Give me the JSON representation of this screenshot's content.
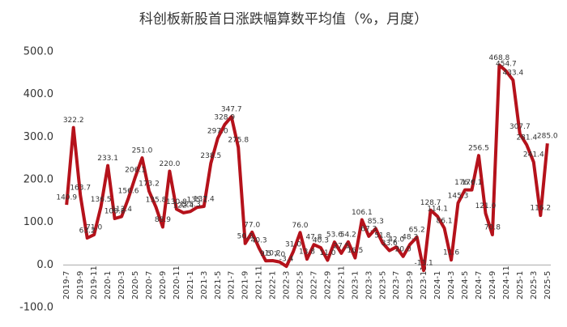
{
  "chart_data": {
    "type": "line",
    "title": "科创板新股首日涨跌幅算数平均值（%，月度）",
    "categories": [
      "2019-7",
      null,
      "2019-9",
      null,
      "2019-11",
      null,
      "2020-1",
      null,
      "2020-3",
      null,
      "2020-5",
      null,
      "2020-7",
      null,
      "2020-9",
      null,
      "2020-11",
      null,
      "2021-1",
      null,
      "2021-3",
      null,
      "2021-5",
      null,
      "2021-7",
      null,
      "2021-9",
      null,
      "2021-11",
      null,
      "2022-1",
      null,
      "2022-3",
      null,
      "2022-5",
      null,
      "2022-7",
      null,
      "2022-9",
      null,
      "2022-11",
      null,
      "2023-1",
      null,
      "2023-3",
      null,
      "2023-5",
      null,
      "2023-7",
      null,
      "2023-9",
      null,
      "2023-11",
      null,
      "2024-1",
      null,
      "2024-3",
      null,
      "2024-5",
      null,
      "2024-7",
      null,
      "2024-9",
      null,
      "2024-11",
      null,
      "2025-1",
      null,
      "2025-3",
      null,
      "2025-5"
    ],
    "series": [
      {
        "name": "首日涨跌幅",
        "color": "#b5121b",
        "values": [
          140.9,
          322.2,
          163.7,
          63.2,
          71.0,
          136.5,
          233.1,
          108.8,
          113.4,
          156.6,
          206.1,
          251.0,
          173.2,
          135.8,
          88.9,
          220.0,
          130.8,
          122.4,
          125.3,
          135.1,
          137.4,
          238.5,
          297.0,
          328.9,
          347.7,
          275.8,
          50.3,
          77.0,
          40.3,
          9.5,
          10.2,
          7.0,
          -3.4,
          31.0,
          76.0,
          13.8,
          47.8,
          40.3,
          11.0,
          53.6,
          27.5,
          54.2,
          16.5,
          106.1,
          67.3,
          85.3,
          51.8,
          33.6,
          42.0,
          20.0,
          48.3,
          65.2,
          -13.1,
          128.7,
          114.1,
          86.1,
          11.6,
          145.3,
          176.0,
          176.1,
          256.5,
          121.0,
          70.8,
          468.8,
          454.7,
          433.4,
          307.7,
          281.4,
          241.4,
          116.2,
          285.0
        ],
        "value_labels": [
          "140.9",
          "322.2",
          "163.7",
          "63.2",
          "71.0",
          "136.5",
          "233.1",
          "108.8",
          "113.4",
          "156.6",
          "206.1",
          "251.0",
          "173.2",
          "135.8",
          "88.9",
          "220.0",
          "130.8",
          "122.4",
          "125.3",
          "135.1",
          "137.4",
          "238.5",
          "297.0",
          "328.9",
          "347.7",
          "275.8",
          "50.3",
          "77.0",
          "40.3",
          "9.5",
          "10.2",
          "7.0",
          "-3.4",
          "31.0",
          "76.0",
          "13.8",
          "47.8",
          "40.3",
          "11.0",
          "53.6",
          "27.5",
          "54.2",
          "16.5",
          "106.1",
          "67.3",
          "85.3",
          "51.8",
          "33.6",
          "42.0",
          "20.0",
          "48.3",
          "65.2",
          "-13.1",
          "128.7",
          "114.1",
          "86.1",
          "11.6",
          "145.3",
          "176.0",
          "176.1",
          "256.5",
          "121.0",
          "70.8",
          "468.8",
          "454.7",
          "433.4",
          "307.7",
          "281.4",
          "241.4",
          "116.2",
          "285.0"
        ]
      }
    ],
    "ylim": [
      -100,
      500
    ],
    "yticks": [
      {
        "value": -100,
        "label": "-100.0"
      },
      {
        "value": 0,
        "label": "0.0"
      },
      {
        "value": 100,
        "label": "100.0"
      },
      {
        "value": 200,
        "label": "200.0"
      },
      {
        "value": 300,
        "label": "300.0"
      },
      {
        "value": 400,
        "label": "400.0"
      },
      {
        "value": 500,
        "label": "500.0"
      }
    ]
  }
}
